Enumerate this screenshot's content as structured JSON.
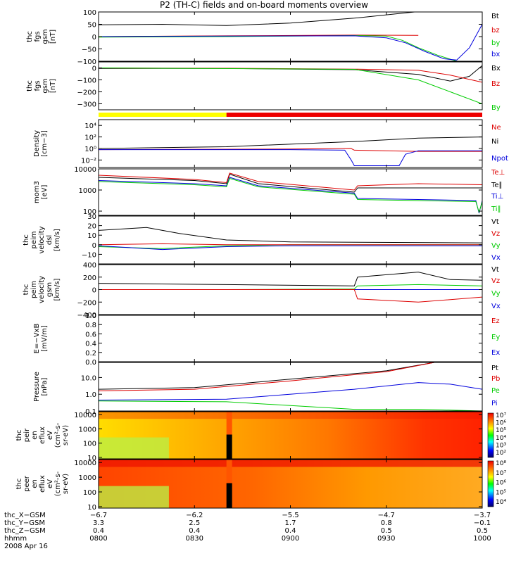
{
  "title": "P2 (TH-C) fields and on-board moments overview",
  "colors": {
    "black": "#000000",
    "red": "#dd0000",
    "green": "#00cc00",
    "blue": "#0000dd",
    "yellow": "#ffff00",
    "barRed": "#ee0000"
  },
  "chart_data": [
    {
      "id": "p1",
      "type": "line",
      "ylabel": [
        "thc",
        "fgs",
        "gsm",
        "[nT]"
      ],
      "ylim": [
        -100,
        100
      ],
      "yticks": [
        {
          "v": 100,
          "t": "100"
        },
        {
          "v": 50,
          "t": "50"
        },
        {
          "v": 0,
          "t": "0"
        },
        {
          "v": -50,
          "t": "−50"
        },
        {
          "v": -100,
          "t": "−100"
        }
      ],
      "legend": [
        {
          "t": "Bt",
          "c": "black"
        },
        {
          "t": "bz",
          "c": "red"
        },
        {
          "t": "by",
          "c": "green"
        },
        {
          "t": "bx",
          "c": "blue"
        }
      ],
      "series": [
        {
          "color": "black",
          "x": [
            0,
            20,
            40,
            60,
            80,
            95,
            110
          ],
          "y": [
            48,
            50,
            45,
            55,
            75,
            95,
            115
          ]
        },
        {
          "color": "red",
          "x": [
            0,
            40,
            80,
            100
          ],
          "y": [
            0,
            3,
            6,
            5
          ]
        },
        {
          "color": "green",
          "x": [
            0,
            40,
            80,
            90,
            95,
            100,
            106,
            112,
            120
          ],
          "y": [
            -2,
            0,
            4,
            2,
            -15,
            -45,
            -75,
            -100,
            -130
          ]
        },
        {
          "color": "blue",
          "x": [
            0,
            40,
            80,
            90,
            96,
            102,
            108,
            112,
            116,
            120
          ],
          "y": [
            0,
            2,
            3,
            -5,
            -25,
            -60,
            -90,
            -95,
            -45,
            50
          ]
        }
      ]
    },
    {
      "id": "p2",
      "type": "line",
      "ylabel": [
        "thc",
        "fgs",
        "gsm",
        "[nT]"
      ],
      "ylim": [
        -350,
        50
      ],
      "yticks": [
        {
          "v": 0,
          "t": "0"
        },
        {
          "v": -100,
          "t": "−100"
        },
        {
          "v": -200,
          "t": "−200"
        },
        {
          "v": -300,
          "t": "−300"
        }
      ],
      "legend": [
        {
          "t": "Bx",
          "c": "black"
        },
        {
          "t": "Bz",
          "c": "red"
        },
        {
          "t": "By",
          "c": "green"
        }
      ],
      "series": [
        {
          "color": "black",
          "x": [
            0,
            40,
            80,
            100,
            110,
            116,
            120
          ],
          "y": [
            -5,
            -5,
            -15,
            -55,
            -110,
            -70,
            20
          ]
        },
        {
          "color": "red",
          "x": [
            0,
            40,
            80,
            100,
            110,
            120
          ],
          "y": [
            0,
            -3,
            -10,
            -20,
            -60,
            -120
          ]
        },
        {
          "color": "green",
          "x": [
            0,
            60,
            80,
            100,
            110,
            120
          ],
          "y": [
            0,
            -8,
            -12,
            -100,
            -200,
            -300
          ]
        }
      ]
    },
    {
      "id": "p3",
      "type": "line",
      "ylabel": [
        "Density",
        "[cm−3]"
      ],
      "log": true,
      "ylim": [
        -3.3,
        5
      ],
      "yticks": [
        {
          "v": 4,
          "t": "10⁴"
        },
        {
          "v": 2,
          "t": "10²"
        },
        {
          "v": 0,
          "t": "10⁰"
        },
        {
          "v": -2,
          "t": "10⁻²"
        }
      ],
      "legend": [
        {
          "t": "Ne",
          "c": "red"
        },
        {
          "t": "Ni",
          "c": "black"
        },
        {
          "t": "Npot",
          "c": "blue"
        }
      ],
      "series": [
        {
          "color": "black",
          "x": [
            0,
            40,
            80,
            100,
            120
          ],
          "y": [
            0,
            0.3,
            1.2,
            1.8,
            2
          ]
        },
        {
          "color": "red",
          "x": [
            0,
            60,
            79,
            80,
            100,
            120
          ],
          "y": [
            -0.2,
            -0.1,
            0,
            -0.3,
            -0.5,
            -0.5
          ]
        },
        {
          "color": "blue",
          "x": [
            0,
            60,
            77,
            79,
            80,
            94,
            96,
            100,
            120
          ],
          "y": [
            -0.2,
            -0.2,
            -0.3,
            -2,
            -3,
            -3,
            -1,
            -0.4,
            -0.4
          ]
        }
      ]
    },
    {
      "id": "p4",
      "type": "line",
      "ylabel": [
        "mom3",
        "[eV]"
      ],
      "log": true,
      "ylim": [
        1.8,
        4
      ],
      "yticks": [
        {
          "v": 4,
          "t": "10000"
        },
        {
          "v": 3,
          "t": "1000"
        },
        {
          "v": 2,
          "t": "100"
        }
      ],
      "legend": [
        {
          "t": "Te⊥",
          "c": "red"
        },
        {
          "t": "Te∥",
          "c": "black"
        },
        {
          "t": "Ti⊥",
          "c": "blue"
        },
        {
          "t": "Ti∥",
          "c": "green"
        }
      ],
      "series": [
        {
          "color": "black",
          "x": [
            0,
            30,
            40,
            41,
            50,
            80,
            81,
            100,
            120
          ],
          "y": [
            3.6,
            3.45,
            3.3,
            3.75,
            3.3,
            2.9,
            3.1,
            3.1,
            3.1
          ]
        },
        {
          "color": "red",
          "x": [
            0,
            30,
            40,
            41,
            50,
            80,
            81,
            100,
            120
          ],
          "y": [
            3.7,
            3.5,
            3.35,
            3.8,
            3.4,
            3,
            3.2,
            3.3,
            3.25
          ]
        },
        {
          "color": "blue",
          "x": [
            0,
            30,
            40,
            41,
            50,
            80,
            81,
            100,
            118,
            119,
            120
          ],
          "y": [
            3.45,
            3.3,
            3.2,
            3.6,
            3.2,
            2.85,
            2.6,
            2.55,
            2.5,
            1.9,
            2.5
          ]
        },
        {
          "color": "green",
          "x": [
            0,
            30,
            40,
            41,
            50,
            80,
            81,
            100,
            118,
            119,
            120
          ],
          "y": [
            3.4,
            3.25,
            3.15,
            3.55,
            3.15,
            2.8,
            2.55,
            2.5,
            2.45,
            1.95,
            2.45
          ]
        }
      ]
    },
    {
      "id": "p5",
      "type": "line",
      "ylabel": [
        "thc",
        "peim",
        "velocity",
        "dsl",
        "[km/s]"
      ],
      "ylim": [
        -20,
        30
      ],
      "yticks": [
        {
          "v": 30,
          "t": "30"
        },
        {
          "v": 20,
          "t": "20"
        },
        {
          "v": 10,
          "t": "10"
        },
        {
          "v": 0,
          "t": "0"
        },
        {
          "v": -10,
          "t": "−10"
        }
      ],
      "legend": [
        {
          "t": "Vt",
          "c": "black"
        },
        {
          "t": "Vz",
          "c": "red"
        },
        {
          "t": "Vy",
          "c": "green"
        },
        {
          "t": "Vx",
          "c": "blue"
        }
      ],
      "series": [
        {
          "color": "black",
          "x": [
            0,
            15,
            25,
            40,
            60,
            120
          ],
          "y": [
            15,
            18,
            12,
            5,
            3,
            2
          ]
        },
        {
          "color": "green",
          "x": [
            0,
            20,
            40,
            60,
            120
          ],
          "y": [
            -2,
            -4,
            -1,
            0,
            0
          ]
        },
        {
          "color": "red",
          "x": [
            0,
            20,
            40,
            60,
            120
          ],
          "y": [
            0,
            1,
            0,
            0,
            0
          ]
        },
        {
          "color": "blue",
          "x": [
            0,
            20,
            40,
            60,
            120
          ],
          "y": [
            -1,
            -5,
            -2,
            -1,
            -1
          ]
        }
      ]
    },
    {
      "id": "p6",
      "type": "line",
      "ylabel": [
        "thc",
        "peim",
        "velocity",
        "gsm",
        "[km/s]"
      ],
      "ylim": [
        -400,
        400
      ],
      "yticks": [
        {
          "v": 400,
          "t": "400"
        },
        {
          "v": 200,
          "t": "200"
        },
        {
          "v": 0,
          "t": "0"
        },
        {
          "v": -200,
          "t": "−200"
        },
        {
          "v": -400,
          "t": "−400"
        }
      ],
      "legend": [
        {
          "t": "Vt",
          "c": "black"
        },
        {
          "t": "Vz",
          "c": "red"
        },
        {
          "t": "Vy",
          "c": "green"
        },
        {
          "t": "Vx",
          "c": "blue"
        }
      ],
      "series": [
        {
          "color": "black",
          "x": [
            0,
            40,
            80,
            81,
            100,
            110,
            120
          ],
          "y": [
            100,
            80,
            60,
            200,
            280,
            160,
            150
          ]
        },
        {
          "color": "green",
          "x": [
            0,
            40,
            80,
            81,
            100,
            120
          ],
          "y": [
            0,
            0,
            10,
            60,
            80,
            60
          ]
        },
        {
          "color": "blue",
          "x": [
            0,
            40,
            80,
            100,
            120
          ],
          "y": [
            0,
            0,
            0,
            0,
            0
          ]
        },
        {
          "color": "red",
          "x": [
            0,
            40,
            80,
            81,
            100,
            120
          ],
          "y": [
            0,
            0,
            0,
            -150,
            -200,
            -120
          ]
        }
      ]
    },
    {
      "id": "p7",
      "type": "line",
      "ylabel": [
        "E=−VxB",
        "[mV/m]"
      ],
      "ylim": [
        0,
        1
      ],
      "yticks": [
        {
          "v": 1,
          "t": "1.0"
        },
        {
          "v": 0.8,
          "t": "0.8"
        },
        {
          "v": 0.6,
          "t": "0.6"
        },
        {
          "v": 0.4,
          "t": "0.4"
        },
        {
          "v": 0.2,
          "t": "0.2"
        },
        {
          "v": 0,
          "t": "0.0"
        }
      ],
      "legend": [
        {
          "t": "Ez",
          "c": "red"
        },
        {
          "t": "Ey",
          "c": "green"
        },
        {
          "t": "Ex",
          "c": "blue"
        }
      ],
      "series": []
    },
    {
      "id": "p8",
      "type": "line",
      "ylabel": [
        "Pressure",
        "[nPa]"
      ],
      "log": true,
      "ylim": [
        -1,
        1.9
      ],
      "yticks": [
        {
          "v": 1,
          "t": "10.0"
        },
        {
          "v": 0,
          "t": "1.0"
        },
        {
          "v": -1,
          "t": "0.1"
        }
      ],
      "legend": [
        {
          "t": "Pt",
          "c": "black"
        },
        {
          "t": "Pb",
          "c": "red"
        },
        {
          "t": "Pe",
          "c": "green"
        },
        {
          "t": "Pi",
          "c": "blue"
        }
      ],
      "series": [
        {
          "color": "black",
          "x": [
            0,
            30,
            60,
            90,
            105
          ],
          "y": [
            0.3,
            0.4,
            0.9,
            1.4,
            1.9
          ]
        },
        {
          "color": "red",
          "x": [
            0,
            30,
            60,
            90,
            105
          ],
          "y": [
            0.2,
            0.3,
            0.8,
            1.35,
            1.9
          ]
        },
        {
          "color": "green",
          "x": [
            0,
            40,
            80,
            100,
            120
          ],
          "y": [
            -0.4,
            -0.45,
            -0.9,
            -0.9,
            -1
          ]
        },
        {
          "color": "blue",
          "x": [
            0,
            40,
            80,
            100,
            110,
            120
          ],
          "y": [
            -0.35,
            -0.3,
            0.3,
            0.7,
            0.6,
            0.3
          ]
        }
      ]
    },
    {
      "id": "p9",
      "type": "heatmap",
      "ylabel": [
        "thc",
        "peir",
        "en",
        "eflux",
        "eV",
        "(cm²-s-",
        "sr-eV)"
      ],
      "log": true,
      "ylim": [
        0.9,
        4.2
      ],
      "yticks": [
        {
          "v": 4,
          "t": "10000"
        },
        {
          "v": 3,
          "t": "1000"
        },
        {
          "v": 2,
          "t": "100"
        },
        {
          "v": 1,
          "t": "10"
        }
      ],
      "colorbar": [
        "10⁷",
        "10⁶",
        "10⁵",
        "10⁴",
        "10³",
        "10²"
      ]
    },
    {
      "id": "p10",
      "type": "heatmap",
      "ylabel": [
        "thc",
        "peer",
        "en",
        "eflux",
        "eV",
        "(cm²-s-",
        "sr-eV)"
      ],
      "log": true,
      "ylim": [
        0.9,
        4.2
      ],
      "yticks": [
        {
          "v": 4,
          "t": "10000"
        },
        {
          "v": 3,
          "t": "1000"
        },
        {
          "v": 2,
          "t": "100"
        },
        {
          "v": 1,
          "t": "10"
        }
      ],
      "colorbar": [
        "10⁸",
        "10⁷",
        "10⁶",
        "10⁵",
        "10⁴"
      ]
    }
  ],
  "xaxis": {
    "rows": [
      {
        "label": "thc_X−GSM",
        "values": [
          "−6.7",
          "−6.2",
          "−5.5",
          "−4.7",
          "−3.7"
        ]
      },
      {
        "label": "thc_Y−GSM",
        "values": [
          "3.3",
          "2.5",
          "1.7",
          "0.8",
          "−0.1"
        ]
      },
      {
        "label": "thc_Z−GSM",
        "values": [
          "0.4",
          "0.4",
          "0.4",
          "0.5",
          "0.5"
        ]
      },
      {
        "label": "hhmm",
        "values": [
          "0800",
          "0830",
          "0900",
          "0930",
          "1000"
        ]
      }
    ],
    "date": "2008 Apr 16",
    "minutes": [
      0,
      30,
      60,
      90,
      120
    ]
  }
}
